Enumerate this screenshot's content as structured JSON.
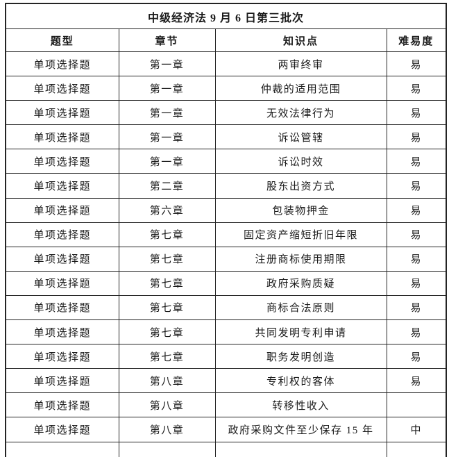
{
  "table": {
    "title": "中级经济法 9 月 6 日第三批次",
    "columns": [
      "题型",
      "章节",
      "知识点",
      "难易度"
    ],
    "rows": [
      [
        "单项选择题",
        "第一章",
        "两审终审",
        "易"
      ],
      [
        "单项选择题",
        "第一章",
        "仲裁的适用范围",
        "易"
      ],
      [
        "单项选择题",
        "第一章",
        "无效法律行为",
        "易"
      ],
      [
        "单项选择题",
        "第一章",
        "诉讼管辖",
        "易"
      ],
      [
        "单项选择题",
        "第一章",
        "诉讼时效",
        "易"
      ],
      [
        "单项选择题",
        "第二章",
        "股东出资方式",
        "易"
      ],
      [
        "单项选择题",
        "第六章",
        "包装物押金",
        "易"
      ],
      [
        "单项选择题",
        "第七章",
        "固定资产缩短折旧年限",
        "易"
      ],
      [
        "单项选择题",
        "第七章",
        "注册商标使用期限",
        "易"
      ],
      [
        "单项选择题",
        "第七章",
        "政府采购质疑",
        "易"
      ],
      [
        "单项选择题",
        "第七章",
        "商标合法原则",
        "易"
      ],
      [
        "单项选择题",
        "第七章",
        "共同发明专利申请",
        "易"
      ],
      [
        "单项选择题",
        "第七章",
        "职务发明创造",
        "易"
      ],
      [
        "单项选择题",
        "第八章",
        "专利权的客体",
        "易"
      ],
      [
        "单项选择题",
        "第八章",
        "转移性收入",
        ""
      ],
      [
        "单项选择题",
        "第八章",
        "政府采购文件至少保存 15 年",
        "中"
      ]
    ],
    "colors": {
      "border": "#242424",
      "text": "#1a1a1a",
      "background": "#ffffff"
    }
  }
}
